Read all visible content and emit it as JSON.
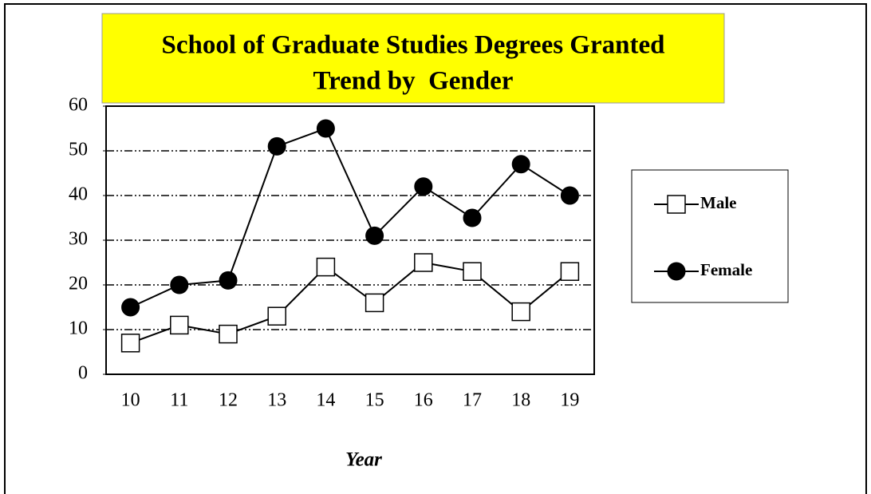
{
  "chart_data": {
    "type": "line",
    "title": [
      "School of Graduate Studies Degrees Granted",
      "Trend by  Gender"
    ],
    "xlabel": "Year",
    "categories": [
      "10",
      "11",
      "12",
      "13",
      "14",
      "15",
      "16",
      "17",
      "18",
      "19"
    ],
    "series": [
      {
        "name": "Male",
        "color": "#000000",
        "marker": "square",
        "values": [
          7,
          11,
          9,
          13,
          24,
          16,
          25,
          23,
          14,
          23
        ]
      },
      {
        "name": "Female",
        "color": "#000000",
        "marker": "circle",
        "values": [
          15,
          20,
          21,
          51,
          55,
          31,
          42,
          35,
          47,
          40
        ]
      }
    ],
    "ylim": [
      0,
      60
    ],
    "yticks": [
      0,
      10,
      20,
      30,
      40,
      50,
      60
    ],
    "grid": true,
    "legend": "right"
  }
}
